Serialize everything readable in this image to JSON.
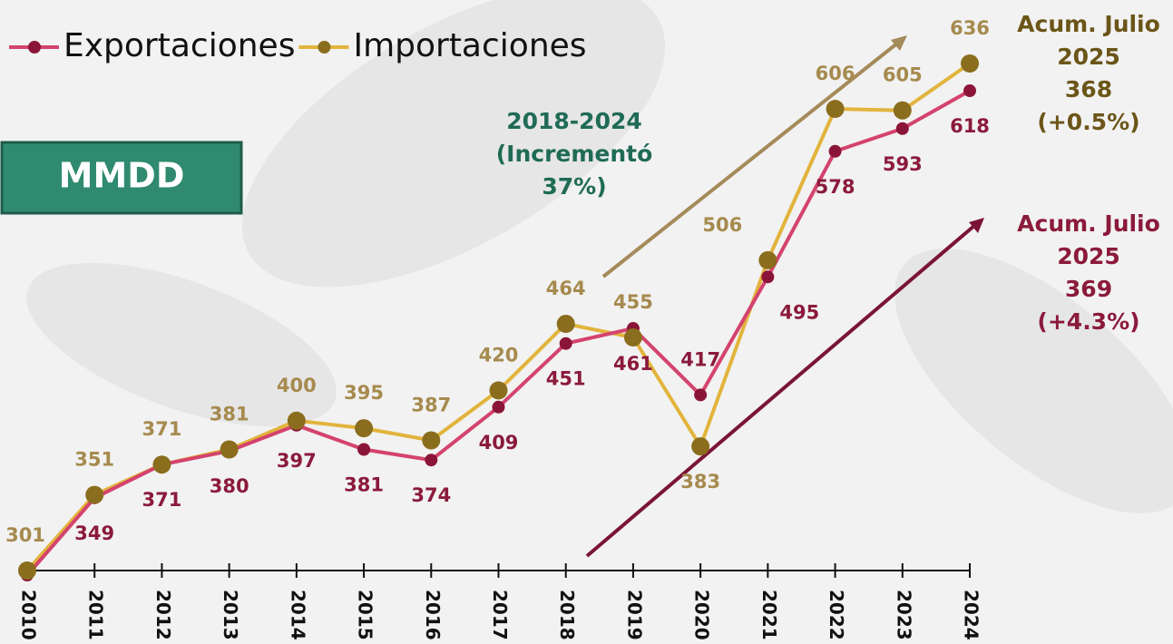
{
  "chart_data": {
    "type": "line",
    "categories": [
      "2010",
      "2011",
      "2012",
      "2013",
      "2014",
      "2015",
      "2016",
      "2017",
      "2018",
      "2019",
      "2020",
      "2021",
      "2022",
      "2023",
      "2024"
    ],
    "series": [
      {
        "name": "Exportaciones",
        "color": "#d4436e",
        "marker_color": "#8b1538",
        "label_color": "#8b1a3c",
        "values": [
          298,
          349,
          371,
          380,
          397,
          381,
          374,
          409,
          451,
          461,
          417,
          495,
          578,
          593,
          618
        ],
        "value_labels": [
          null,
          "349",
          "371",
          "380",
          "397",
          "381",
          "374",
          "409",
          "451",
          "461",
          "417",
          "495",
          "578",
          "593",
          "618"
        ]
      },
      {
        "name": "Importaciones",
        "color": "#e2b43c",
        "marker_color": "#8a6d1d",
        "label_color": "#a68a4e",
        "values": [
          301,
          351,
          371,
          381,
          400,
          395,
          387,
          420,
          464,
          455,
          383,
          506,
          606,
          605,
          636
        ],
        "value_labels": [
          "301",
          "351",
          "371",
          "381",
          "400",
          "395",
          "387",
          "420",
          "464",
          "455",
          "383",
          "506",
          "606",
          "605",
          "636"
        ]
      }
    ],
    "ylim": [
      301,
      636
    ],
    "unit_label": "MMDD",
    "annotations": [
      {
        "lines": [
          "2018-2024",
          "(Incrementó",
          "37%)"
        ],
        "color": "#1f6b55"
      },
      {
        "lines": [
          "Acum. Julio",
          "2025",
          "368",
          "(+0.5%)"
        ],
        "color": "#6b5518"
      },
      {
        "lines": [
          "Acum. Julio",
          "2025",
          "369",
          "(+4.3%)"
        ],
        "color": "#8b1a3c"
      }
    ]
  }
}
